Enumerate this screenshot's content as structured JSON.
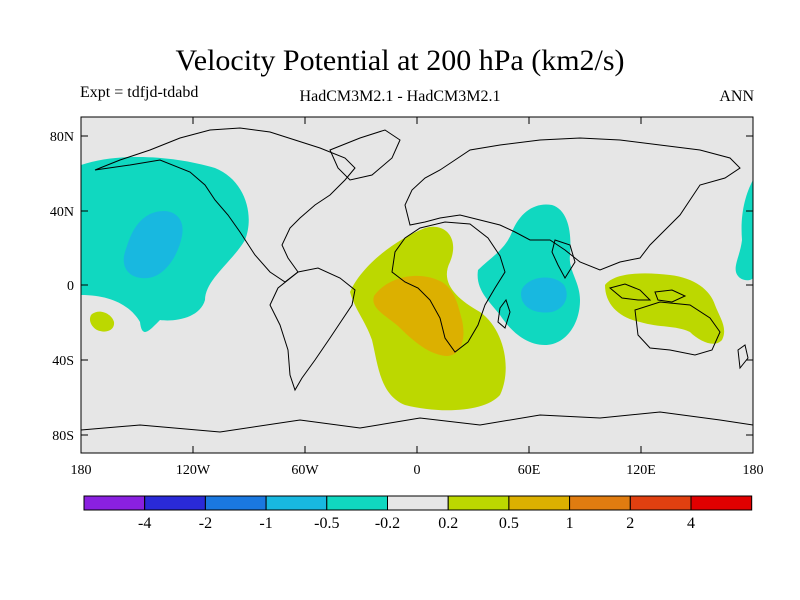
{
  "title": "Velocity Potential at 200 hPa (km2/s)",
  "subtitle_left": "Expt = tdfjd-tdabd",
  "subtitle_center": "HadCM3M2.1 - HadCM3M2.1",
  "subtitle_right": "ANN",
  "map": {
    "background_color": "#e6e6e6",
    "lat_labels": [
      "80N",
      "40N",
      "0",
      "40S",
      "80S"
    ],
    "lon_labels": [
      "180",
      "120W",
      "60W",
      "0",
      "60E",
      "120E",
      "180"
    ]
  },
  "colorbar": {
    "colors": [
      "#8a20e0",
      "#2a2ad8",
      "#1a78e0",
      "#18b8e0",
      "#10d8c0",
      "#e6e6e6",
      "#bcd800",
      "#dcb000",
      "#e07c10",
      "#e04010",
      "#e00000"
    ],
    "labels": [
      "-4",
      "-2",
      "-1",
      "-0.5",
      "-0.2",
      "0.2",
      "0.5",
      "1",
      "2",
      "4"
    ]
  }
}
